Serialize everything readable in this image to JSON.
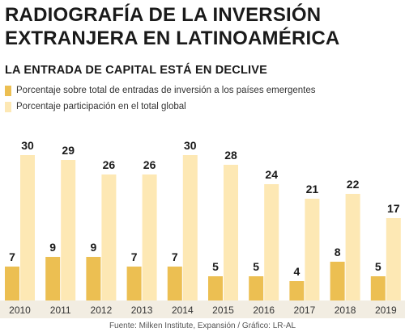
{
  "header": {
    "title_line1": "RADIOGRAFÍA DE LA INVERSIÓN",
    "title_line2": "EXTRANJERA EN LATINOAMÉRICA",
    "subtitle": "LA ENTRADA DE CAPITAL ESTÁ EN DECLIVE"
  },
  "legend": [
    {
      "label": "Porcentaje sobre total de entradas de inversión a los países emergentes",
      "color": "#ecbf52"
    },
    {
      "label": "Porcentaje participación en el total global",
      "color": "#fde8b4"
    }
  ],
  "chart_data": {
    "type": "bar",
    "categories": [
      "2010",
      "2011",
      "2012",
      "2013",
      "2014",
      "2015",
      "2016",
      "2017",
      "2018",
      "2019"
    ],
    "series": [
      {
        "name": "Porcentaje sobre total de entradas de inversión a los países emergentes",
        "values": [
          7,
          9,
          9,
          7,
          7,
          5,
          5,
          4,
          8,
          5
        ],
        "color": "#ecbf52"
      },
      {
        "name": "Porcentaje participación en el total global",
        "values": [
          30,
          29,
          26,
          26,
          30,
          28,
          24,
          21,
          22,
          17
        ],
        "color": "#fde8b4"
      }
    ],
    "ylim": [
      0,
      30
    ],
    "grid": false
  },
  "source": "Fuente: Milken Institute, Expansión / Gráfico: LR-AL",
  "colors": {
    "axis_bg": "#f2ede2",
    "label_text": "#1a1a1a"
  }
}
